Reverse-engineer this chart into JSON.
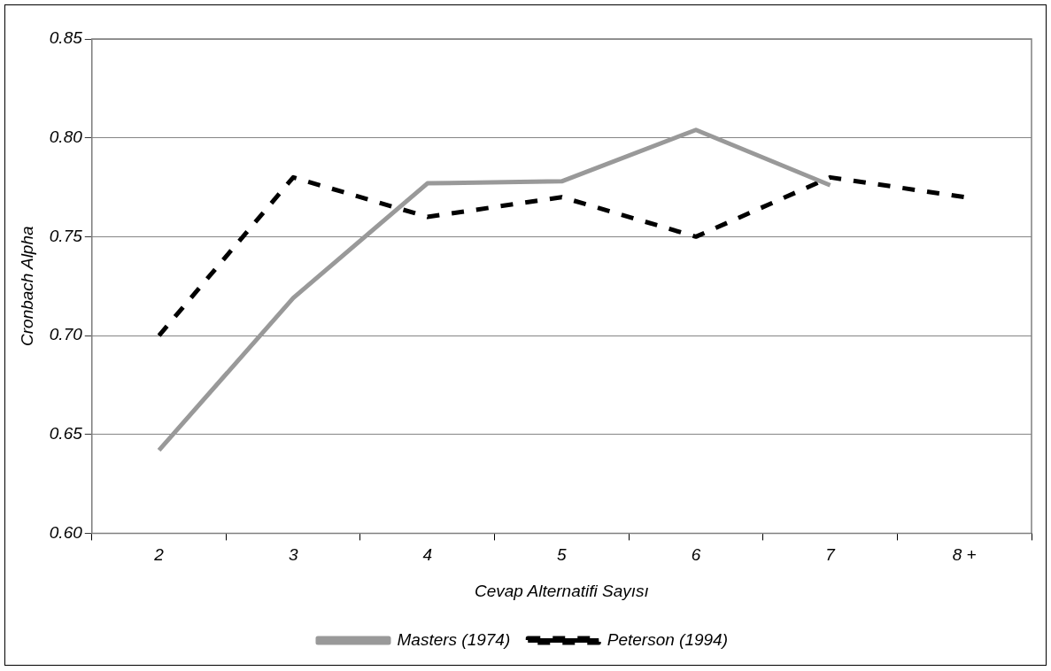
{
  "chart_data": {
    "type": "line",
    "xlabel": "Cevap Alternatifi Sayısı",
    "ylabel": "Cronbach Alpha",
    "categories": [
      "2",
      "3",
      "4",
      "5",
      "6",
      "7",
      "8 +"
    ],
    "series": [
      {
        "name": "Masters (1974)",
        "color": "#999999",
        "line_style": "solid",
        "values": [
          0.642,
          0.719,
          0.777,
          0.778,
          0.804,
          0.776,
          null
        ]
      },
      {
        "name": "Peterson (1994)",
        "color": "#000000",
        "line_style": "dashed",
        "values": [
          0.7,
          0.78,
          0.76,
          0.77,
          0.75,
          0.78,
          0.77
        ]
      }
    ],
    "ylim": [
      0.6,
      0.85
    ],
    "yticks": [
      {
        "value": 0.6,
        "label": "0.60"
      },
      {
        "value": 0.65,
        "label": "0.65"
      },
      {
        "value": 0.7,
        "label": "0.70"
      },
      {
        "value": 0.75,
        "label": "0.75"
      },
      {
        "value": 0.8,
        "label": "0.80"
      },
      {
        "value": 0.85,
        "label": "0.85"
      }
    ],
    "grid": "y",
    "legend": "bottom",
    "marker": "none"
  }
}
